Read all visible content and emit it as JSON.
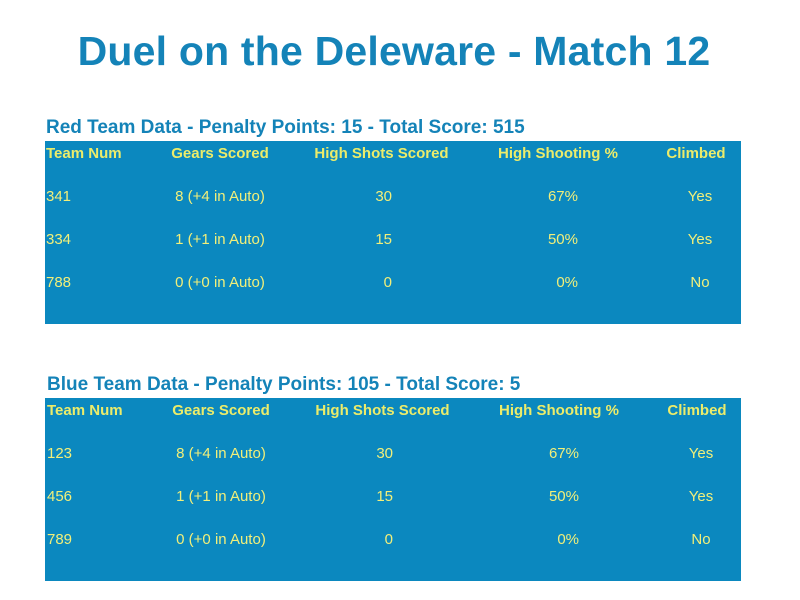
{
  "title": "Duel on the Deleware - Match 12",
  "columns": [
    "Team Num",
    "Gears Scored",
    "High Shots Scored",
    "High Shooting %",
    "Climbed"
  ],
  "red": {
    "heading": "Red Team Data - Penalty Points: 15 - Total Score: 515",
    "rows": [
      {
        "team": "341",
        "gears": "8 (+4 in Auto)",
        "shots": "30",
        "pct": "67%",
        "climbed": "Yes"
      },
      {
        "team": "334",
        "gears": "1 (+1 in Auto)",
        "shots": "15",
        "pct": "50%",
        "climbed": "Yes"
      },
      {
        "team": "788",
        "gears": "0 (+0 in Auto)",
        "shots": "0",
        "pct": "0%",
        "climbed": "No"
      }
    ]
  },
  "blue": {
    "heading": "Blue Team Data - Penalty Points: 105 - Total Score: 5",
    "rows": [
      {
        "team": "123",
        "gears": "8 (+4 in Auto)",
        "shots": "30",
        "pct": "67%",
        "climbed": "Yes"
      },
      {
        "team": "456",
        "gears": "1 (+1 in Auto)",
        "shots": "15",
        "pct": "50%",
        "climbed": "Yes"
      },
      {
        "team": "789",
        "gears": "0 (+0 in Auto)",
        "shots": "0",
        "pct": "0%",
        "climbed": "No"
      }
    ]
  }
}
